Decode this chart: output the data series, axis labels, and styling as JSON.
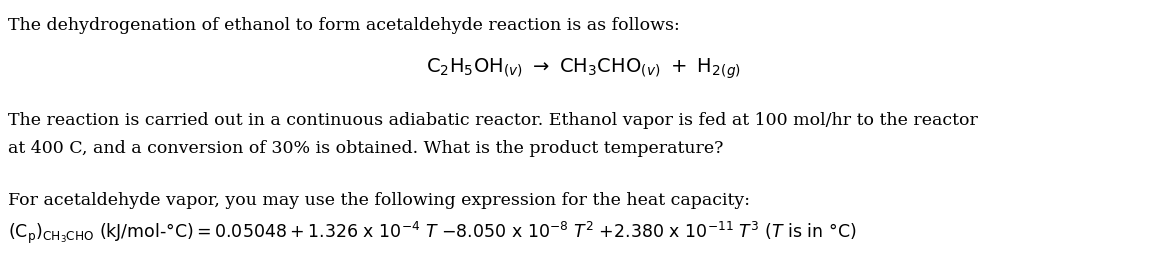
{
  "background_color": "#ffffff",
  "fig_width": 11.68,
  "fig_height": 2.6,
  "dpi": 100,
  "line1": "The dehydrogenation of ethanol to form acetaldehyde reaction is as follows:",
  "line3a": "The reaction is carried out in a continuous adiabatic reactor. Ethanol vapor is fed at 100 mol/hr to the reactor",
  "line3b": "at 400 C, and a conversion of 30% is obtained. What is the product temperature?",
  "line5": "For acetaldehyde vapor, you may use the following expression for the heat capacity:",
  "text_color": "#000000",
  "font_size": 12.5,
  "eq_font_size": 14.0
}
